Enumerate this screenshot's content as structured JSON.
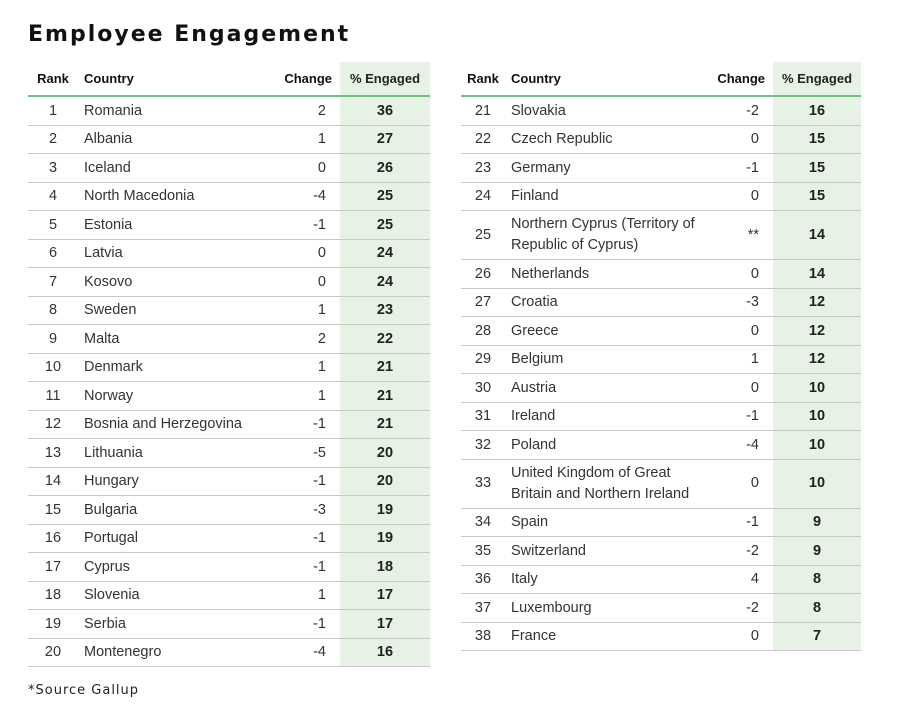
{
  "title": "Employee Engagement",
  "footnote": "*Source Gallup",
  "headers": {
    "rank": "Rank",
    "country": "Country",
    "change": "Change",
    "engaged": "% Engaged"
  },
  "left_rows": [
    {
      "rank": "1",
      "country": "Romania",
      "change": "2",
      "engaged": "36"
    },
    {
      "rank": "2",
      "country": "Albania",
      "change": "1",
      "engaged": "27"
    },
    {
      "rank": "3",
      "country": "Iceland",
      "change": "0",
      "engaged": "26"
    },
    {
      "rank": "4",
      "country": "North Macedonia",
      "change": "-4",
      "engaged": "25"
    },
    {
      "rank": "5",
      "country": "Estonia",
      "change": "-1",
      "engaged": "25"
    },
    {
      "rank": "6",
      "country": "Latvia",
      "change": "0",
      "engaged": "24"
    },
    {
      "rank": "7",
      "country": "Kosovo",
      "change": "0",
      "engaged": "24"
    },
    {
      "rank": "8",
      "country": "Sweden",
      "change": "1",
      "engaged": "23"
    },
    {
      "rank": "9",
      "country": "Malta",
      "change": "2",
      "engaged": "22"
    },
    {
      "rank": "10",
      "country": "Denmark",
      "change": "1",
      "engaged": "21"
    },
    {
      "rank": "11",
      "country": "Norway",
      "change": "1",
      "engaged": "21"
    },
    {
      "rank": "12",
      "country": "Bosnia and Herzegovina",
      "change": "-1",
      "engaged": "21"
    },
    {
      "rank": "13",
      "country": "Lithuania",
      "change": "-5",
      "engaged": "20"
    },
    {
      "rank": "14",
      "country": "Hungary",
      "change": "-1",
      "engaged": "20"
    },
    {
      "rank": "15",
      "country": "Bulgaria",
      "change": "-3",
      "engaged": "19"
    },
    {
      "rank": "16",
      "country": "Portugal",
      "change": "-1",
      "engaged": "19"
    },
    {
      "rank": "17",
      "country": "Cyprus",
      "change": "-1",
      "engaged": "18"
    },
    {
      "rank": "18",
      "country": "Slovenia",
      "change": "1",
      "engaged": "17"
    },
    {
      "rank": "19",
      "country": "Serbia",
      "change": "-1",
      "engaged": "17"
    },
    {
      "rank": "20",
      "country": "Montenegro",
      "change": "-4",
      "engaged": "16"
    }
  ],
  "right_rows": [
    {
      "rank": "21",
      "country": "Slovakia",
      "change": "-2",
      "engaged": "16"
    },
    {
      "rank": "22",
      "country": "Czech Republic",
      "change": "0",
      "engaged": "15"
    },
    {
      "rank": "23",
      "country": "Germany",
      "change": "-1",
      "engaged": "15"
    },
    {
      "rank": "24",
      "country": "Finland",
      "change": "0",
      "engaged": "15"
    },
    {
      "rank": "25",
      "country": "Northern Cyprus (Territory of Republic of Cyprus)",
      "change": "**",
      "engaged": "14",
      "double": true
    },
    {
      "rank": "26",
      "country": "Netherlands",
      "change": "0",
      "engaged": "14"
    },
    {
      "rank": "27",
      "country": "Croatia",
      "change": "-3",
      "engaged": "12"
    },
    {
      "rank": "28",
      "country": "Greece",
      "change": "0",
      "engaged": "12"
    },
    {
      "rank": "29",
      "country": "Belgium",
      "change": "1",
      "engaged": "12"
    },
    {
      "rank": "30",
      "country": "Austria",
      "change": "0",
      "engaged": "10"
    },
    {
      "rank": "31",
      "country": "Ireland",
      "change": "-1",
      "engaged": "10"
    },
    {
      "rank": "32",
      "country": "Poland",
      "change": "-4",
      "engaged": "10"
    },
    {
      "rank": "33",
      "country": "United Kingdom of Great Britain and Northern Ireland",
      "change": "0",
      "engaged": "10",
      "double": true
    },
    {
      "rank": "34",
      "country": "Spain",
      "change": "-1",
      "engaged": "9"
    },
    {
      "rank": "35",
      "country": "Switzerland",
      "change": "-2",
      "engaged": "9"
    },
    {
      "rank": "36",
      "country": "Italy",
      "change": "4",
      "engaged": "8"
    },
    {
      "rank": "37",
      "country": "Luxembourg",
      "change": "-2",
      "engaged": "8"
    },
    {
      "rank": "38",
      "country": "France",
      "change": "0",
      "engaged": "7"
    }
  ]
}
